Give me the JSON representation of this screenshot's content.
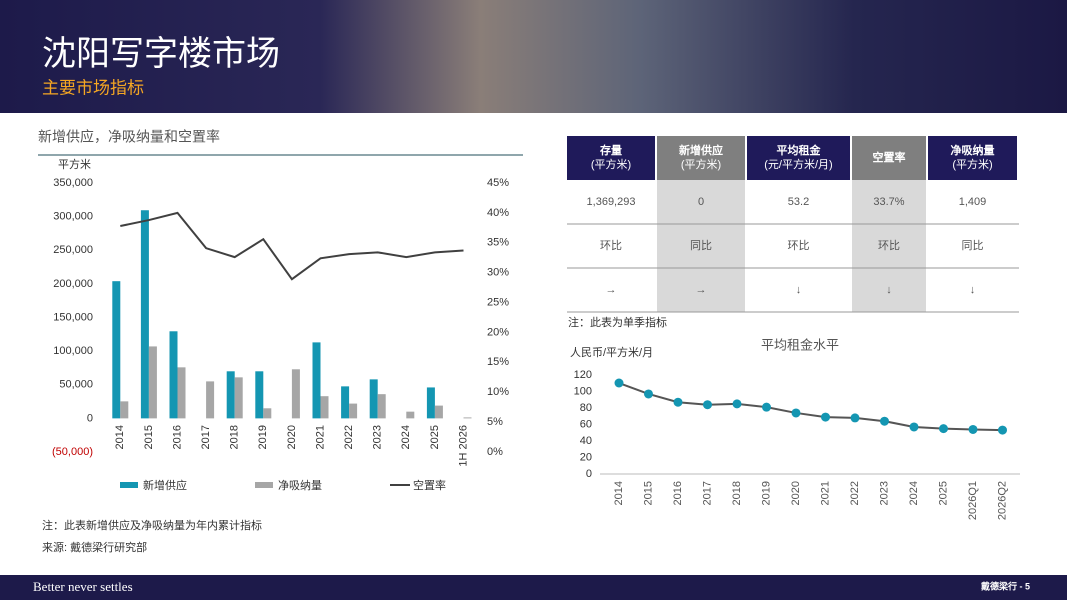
{
  "header": {
    "title": "沈阳写字楼市场",
    "subtitle": "主要市场指标"
  },
  "chart_data": [
    {
      "type": "bar",
      "title": "新增供应，净吸纳量和空置率",
      "y_label": "平方米",
      "categories": [
        "2014",
        "2015",
        "2016",
        "2017",
        "2018",
        "2019",
        "2020",
        "2021",
        "2022",
        "2023",
        "2024",
        "2025",
        "1H 2026"
      ],
      "series": [
        {
          "name": "新增供应",
          "color": "#1496b2",
          "values": [
            204000,
            309500,
            129500,
            0,
            70000,
            70000,
            0,
            113000,
            47600,
            58000,
            0,
            46000,
            0
          ]
        },
        {
          "name": "净吸纳量",
          "color": "#a6a6a6",
          "values": [
            25300,
            107000,
            75900,
            55000,
            61000,
            15000,
            73000,
            33000,
            22000,
            36000,
            10000,
            19000,
            1409
          ]
        },
        {
          "name": "空置率",
          "color": "#404040",
          "type": "line",
          "axis": "y2",
          "values": [
            37.8,
            38.8,
            40.0,
            34.1,
            32.6,
            35.6,
            28.9,
            32.4,
            33.1,
            33.4,
            32.6,
            33.4,
            33.7
          ]
        }
      ],
      "ylim": [
        -50000,
        350000
      ],
      "yticks": [
        {
          "value": -50000,
          "label": "(50,000)"
        },
        0,
        {
          "value": 50000,
          "label": "50,000"
        },
        {
          "value": 100000,
          "label": "100,000"
        },
        {
          "value": 150000,
          "label": "150,000"
        },
        {
          "value": 200000,
          "label": "200,000"
        },
        {
          "value": 250000,
          "label": "250,000"
        },
        {
          "value": 300000,
          "label": "300,000"
        },
        {
          "value": 350000,
          "label": "350,000"
        }
      ],
      "y2lim": [
        0,
        45
      ],
      "y2ticks": [
        {
          "value": 0,
          "label": "0%"
        },
        {
          "value": 5,
          "label": "5%"
        },
        {
          "value": 10,
          "label": "10%"
        },
        {
          "value": 15,
          "label": "15%"
        },
        {
          "value": 20,
          "label": "20%"
        },
        {
          "value": 25,
          "label": "25%"
        },
        {
          "value": 30,
          "label": "30%"
        },
        {
          "value": 35,
          "label": "35%"
        },
        {
          "value": 40,
          "label": "40%"
        },
        {
          "value": 45,
          "label": "45%"
        }
      ],
      "legend": "bottom"
    },
    {
      "type": "line",
      "title": "平均租金水平",
      "y_label": "人民币/平方米/月",
      "color": "#1496b2",
      "categories": [
        "2014",
        "2015",
        "2016",
        "2017",
        "2018",
        "2019",
        "2020",
        "2021",
        "2022",
        "2023",
        "2024",
        "2025",
        "2026Q1",
        "2026Q2"
      ],
      "values": [
        110.3,
        97,
        87,
        84,
        85,
        81,
        74,
        69,
        68,
        64,
        57,
        55,
        54,
        53.2
      ],
      "ylim": [
        0,
        120
      ],
      "yticks": [
        0,
        20,
        40,
        60,
        80,
        100,
        120
      ]
    }
  ],
  "table": {
    "header": [
      [
        "存量",
        "(平方米)"
      ],
      [
        "新增供应",
        "(平方米)"
      ],
      [
        "平均租金",
        "(元/平方米/月)"
      ],
      [
        "空置率"
      ],
      [
        "净吸纳量",
        "(平方米)"
      ]
    ],
    "rows": [
      [
        "1,369,293",
        "0",
        "53.2",
        "33.7%",
        "1,409"
      ],
      [
        "环比",
        "同比",
        "环比",
        "环比",
        "同比"
      ],
      [
        "→",
        "→",
        "↓",
        "↓",
        "↓"
      ]
    ],
    "note": "注：此表为单季指标"
  },
  "notes": [
    "注：此表新增供应及净吸纳量为年内累计指标",
    "来源: 戴德梁行研究部"
  ],
  "footer": {
    "slogan": "Better never settles",
    "page": "戴德梁行 - 5"
  }
}
